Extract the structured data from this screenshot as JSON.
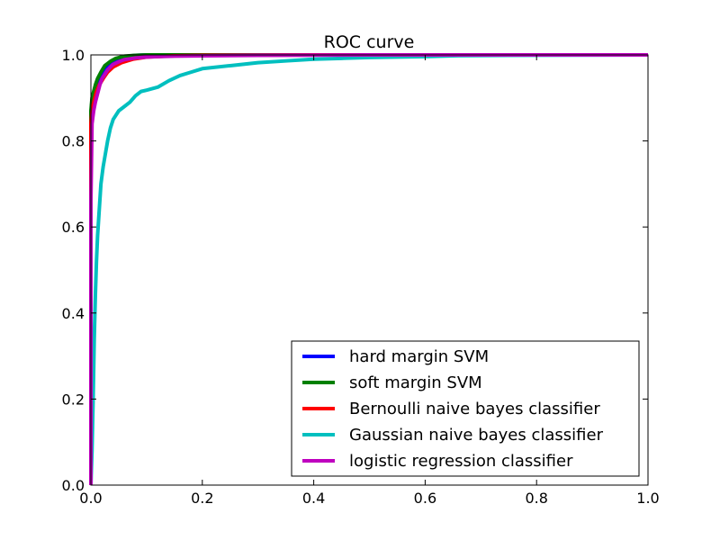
{
  "chart_data": {
    "type": "line",
    "title": "ROC curve",
    "xlabel": "",
    "ylabel": "",
    "xlim": [
      0.0,
      1.0
    ],
    "ylim": [
      0.0,
      1.0
    ],
    "x_ticks": [
      "0.0",
      "0.2",
      "0.4",
      "0.6",
      "0.8",
      "1.0"
    ],
    "y_ticks": [
      "0.0",
      "0.2",
      "0.4",
      "0.6",
      "0.8",
      "1.0"
    ],
    "grid": false,
    "legend_position": "lower-right",
    "series": [
      {
        "name": "hard margin SVM",
        "color": "#0000ff",
        "x": [
          0.0,
          0.0,
          0.002,
          0.005,
          0.008,
          0.012,
          0.018,
          0.025,
          0.035,
          0.045,
          0.06,
          0.08,
          0.1,
          0.3,
          0.6,
          1.0
        ],
        "y": [
          0.0,
          0.86,
          0.895,
          0.91,
          0.925,
          0.94,
          0.955,
          0.97,
          0.982,
          0.99,
          0.996,
          0.999,
          1.0,
          1.0,
          1.0,
          1.0
        ]
      },
      {
        "name": "soft margin SVM",
        "color": "#008000",
        "x": [
          0.0,
          0.0,
          0.002,
          0.005,
          0.008,
          0.012,
          0.018,
          0.025,
          0.035,
          0.045,
          0.06,
          0.08,
          0.1,
          0.3,
          0.6,
          1.0
        ],
        "y": [
          0.0,
          0.87,
          0.9,
          0.915,
          0.93,
          0.945,
          0.96,
          0.975,
          0.985,
          0.992,
          0.997,
          0.999,
          1.0,
          1.0,
          1.0,
          1.0
        ]
      },
      {
        "name": "Bernoulli naive bayes classifier",
        "color": "#ff0000",
        "x": [
          0.0,
          0.0,
          0.002,
          0.006,
          0.01,
          0.015,
          0.022,
          0.03,
          0.04,
          0.055,
          0.075,
          0.1,
          0.15,
          0.2,
          0.4,
          1.0
        ],
        "y": [
          0.0,
          0.84,
          0.87,
          0.895,
          0.915,
          0.93,
          0.945,
          0.96,
          0.972,
          0.982,
          0.99,
          0.995,
          0.998,
          0.999,
          1.0,
          1.0
        ]
      },
      {
        "name": "Gaussian naive bayes classifier",
        "color": "#00bfbf",
        "x": [
          0.0,
          0.002,
          0.004,
          0.006,
          0.008,
          0.01,
          0.012,
          0.015,
          0.018,
          0.022,
          0.026,
          0.03,
          0.035,
          0.04,
          0.05,
          0.06,
          0.07,
          0.08,
          0.09,
          0.1,
          0.12,
          0.14,
          0.16,
          0.18,
          0.2,
          0.25,
          0.3,
          0.35,
          0.4,
          0.45,
          0.5,
          0.55,
          0.6,
          0.65,
          0.75,
          1.0
        ],
        "y": [
          0.0,
          0.08,
          0.2,
          0.34,
          0.44,
          0.52,
          0.58,
          0.64,
          0.7,
          0.74,
          0.77,
          0.8,
          0.83,
          0.85,
          0.87,
          0.88,
          0.89,
          0.905,
          0.915,
          0.918,
          0.925,
          0.94,
          0.952,
          0.96,
          0.968,
          0.975,
          0.982,
          0.986,
          0.99,
          0.992,
          0.994,
          0.995,
          0.996,
          0.998,
          0.999,
          1.0
        ]
      },
      {
        "name": "logistic regression classifier",
        "color": "#bf00bf",
        "x": [
          0.0,
          0.0,
          0.002,
          0.005,
          0.008,
          0.012,
          0.016,
          0.02,
          0.025,
          0.03,
          0.035,
          0.04,
          0.05,
          0.06,
          0.07,
          0.08,
          0.1,
          0.12,
          0.15,
          0.2,
          0.3,
          0.5,
          1.0
        ],
        "y": [
          0.0,
          0.66,
          0.84,
          0.87,
          0.89,
          0.91,
          0.93,
          0.945,
          0.955,
          0.965,
          0.972,
          0.978,
          0.984,
          0.989,
          0.991,
          0.993,
          0.995,
          0.996,
          0.997,
          0.998,
          0.999,
          1.0,
          1.0
        ]
      }
    ]
  }
}
